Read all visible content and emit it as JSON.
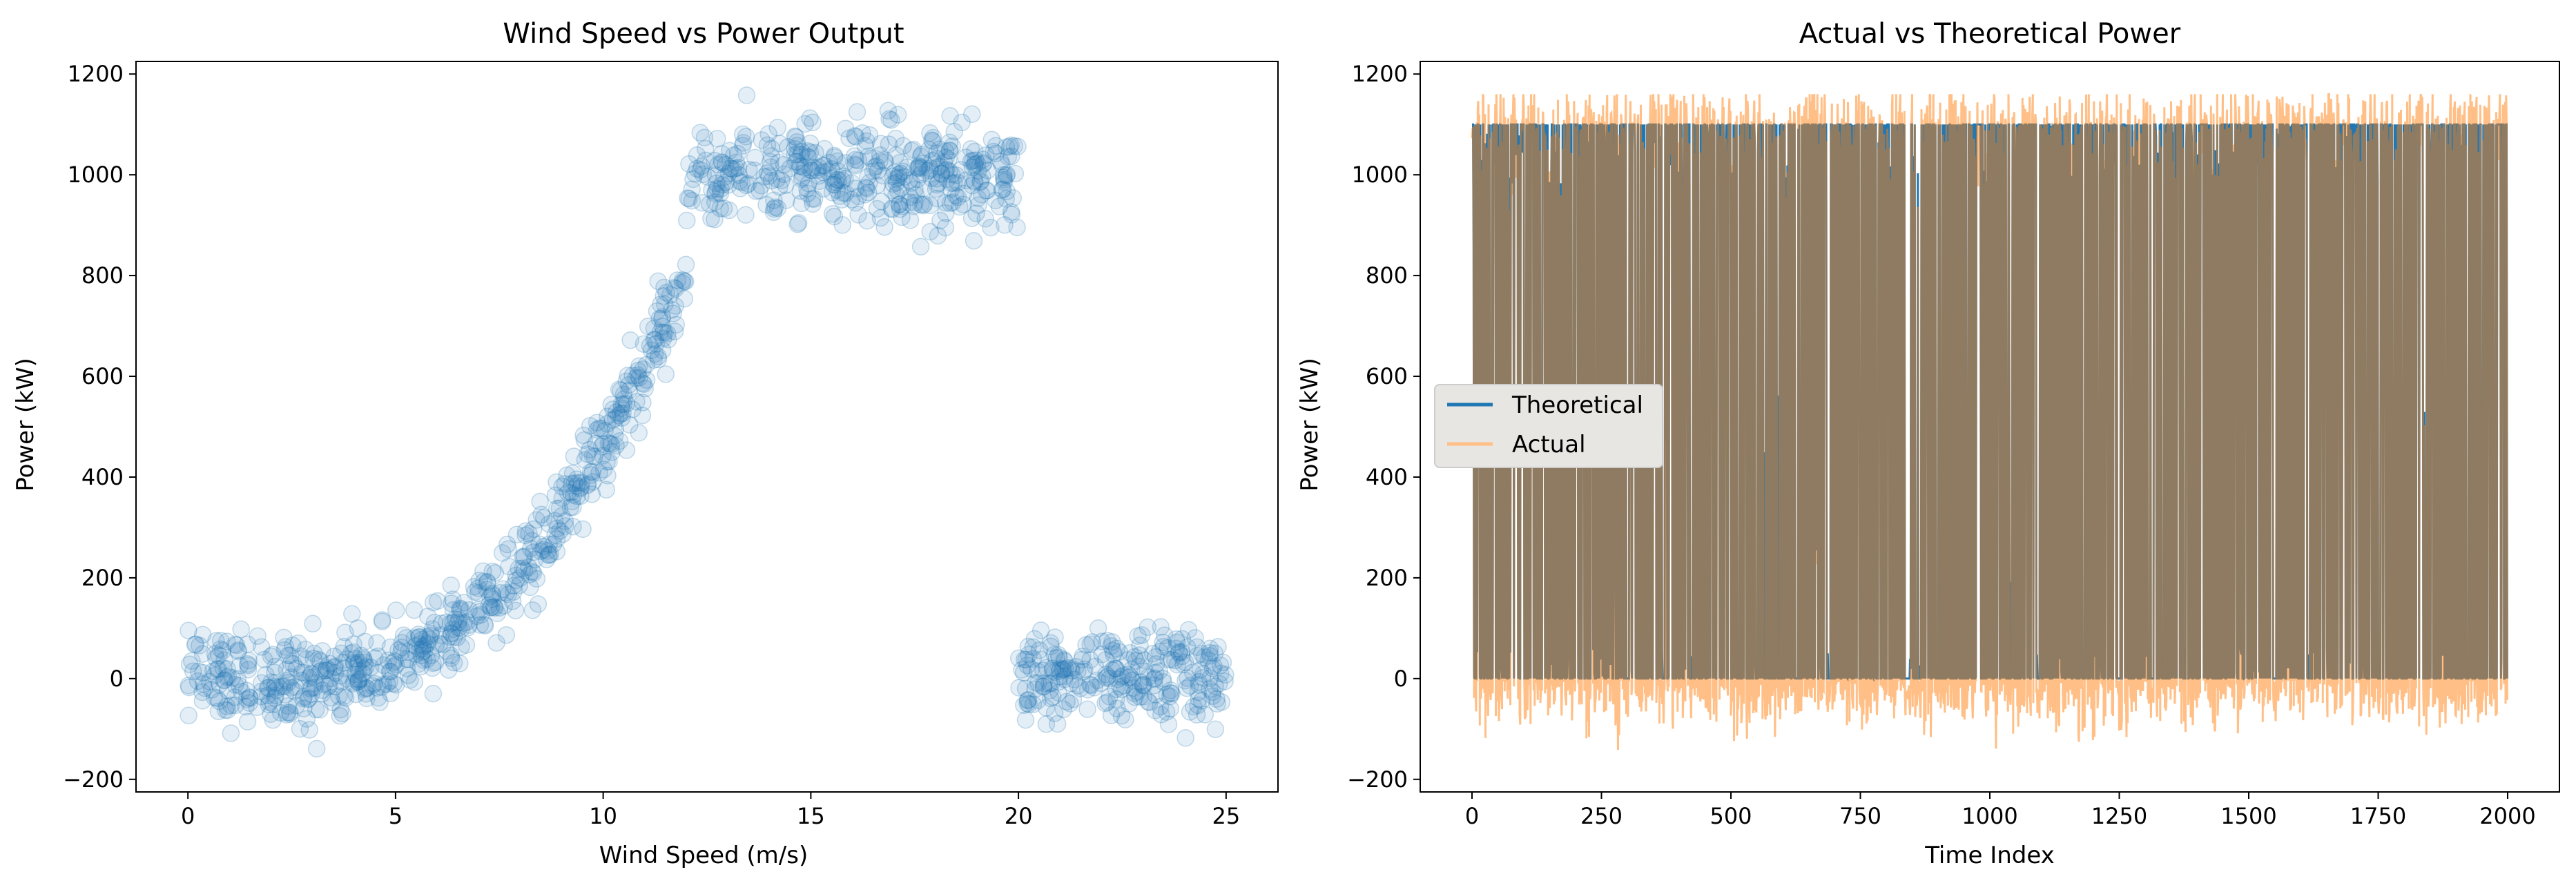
{
  "chart_data": [
    {
      "type": "scatter",
      "title": "Wind Speed vs Power Output",
      "xlabel": "Wind Speed (m/s)",
      "ylabel": "Power (kW)",
      "xlim": [
        -1.25,
        26.25
      ],
      "ylim": [
        -225,
        1225
      ],
      "xticks": [
        0,
        5,
        10,
        15,
        20,
        25
      ],
      "xtick_labels": [
        "0",
        "5",
        "10",
        "15",
        "20",
        "25"
      ],
      "yticks": [
        -200,
        0,
        200,
        400,
        600,
        800,
        1000,
        1200
      ],
      "ytick_labels": [
        "−200",
        "0",
        "200",
        "400",
        "600",
        "800",
        "1000",
        "1200"
      ],
      "grid": false,
      "series": [
        {
          "color": "#1f77b4",
          "opacity": 0.12,
          "segments": [
            {
              "x_range": [
                0,
                3
              ],
              "mean_y": 0,
              "spread": 45,
              "count": 150
            },
            {
              "x_range": [
                3,
                12
              ],
              "mean_y_at_start": 0,
              "mean_y_at_end": 800,
              "shape": "cubic",
              "spread": 40,
              "count": 450
            },
            {
              "x_range": [
                12,
                20
              ],
              "mean_y": 1000,
              "spread": 50,
              "count": 400
            },
            {
              "x_range": [
                20,
                25
              ],
              "mean_y": 0,
              "spread": 45,
              "count": 250
            }
          ]
        }
      ]
    },
    {
      "type": "line",
      "title": "Actual vs Theoretical Power",
      "xlabel": "Time Index",
      "ylabel": "Power (kW)",
      "xlim": [
        -100,
        2100
      ],
      "ylim": [
        -225,
        1225
      ],
      "xticks": [
        0,
        250,
        500,
        750,
        1000,
        1250,
        1500,
        1750,
        2000
      ],
      "xtick_labels": [
        "0",
        "250",
        "500",
        "750",
        "1000",
        "1250",
        "1500",
        "1750",
        "2000"
      ],
      "yticks": [
        -200,
        0,
        200,
        400,
        600,
        800,
        1000,
        1200
      ],
      "ytick_labels": [
        "−200",
        "0",
        "200",
        "400",
        "600",
        "800",
        "1000",
        "1200"
      ],
      "grid": false,
      "legend": "center-left",
      "n_points": 2000,
      "series": [
        {
          "name": "Theoretical",
          "color": "#1f77b4",
          "opacity": 1.0,
          "min": 0,
          "max": 1100
        },
        {
          "name": "Actual",
          "color": "#ff7f0e",
          "opacity": 0.5,
          "min": -150,
          "max": 1160
        }
      ]
    }
  ]
}
